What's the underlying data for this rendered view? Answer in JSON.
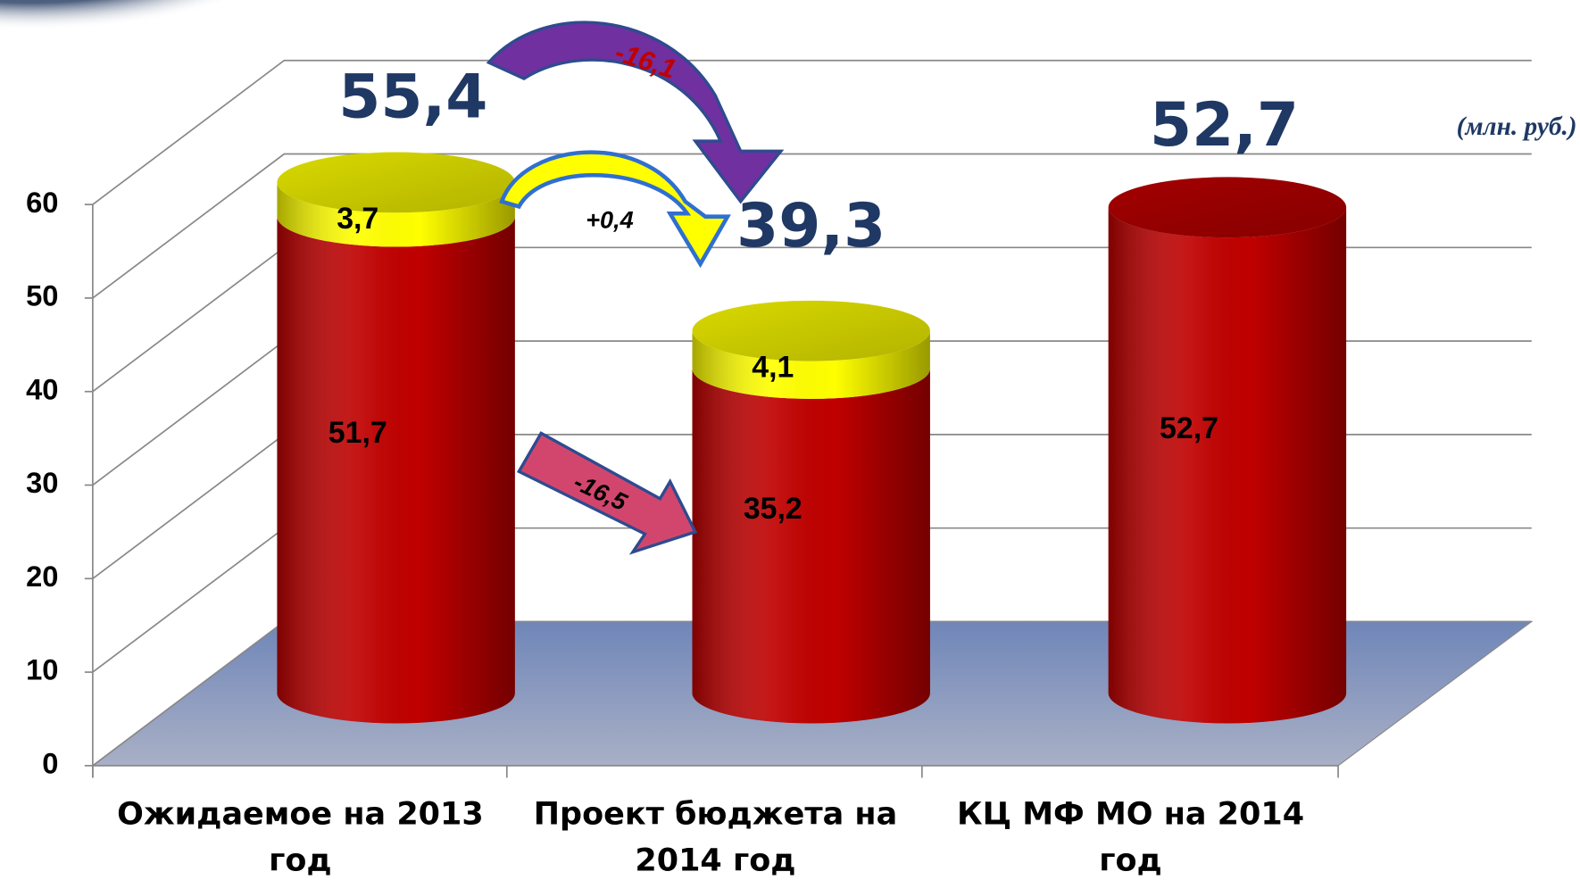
{
  "chart_data": {
    "type": "cylinder-stacked",
    "categories": [
      "Ожидаемое на 2013 год",
      "Проект бюджета на 2014 год",
      "КЦ МФ МО на 2014 год"
    ],
    "series": [
      {
        "color": "#c00000",
        "values": [
          51.7,
          35.2,
          52.7
        ],
        "value_labels": [
          "51,7",
          "35,2",
          "52,7"
        ]
      },
      {
        "color": "#ffff00",
        "values": [
          3.7,
          4.1,
          null
        ],
        "value_labels": [
          "3,7",
          "4,1",
          null
        ]
      }
    ],
    "totals": {
      "values": [
        55.4,
        39.3,
        52.7
      ],
      "value_labels": [
        "55,4",
        "39,3",
        "52,7"
      ]
    },
    "annotations": [
      {
        "value": -16.1,
        "label": "-16,1"
      },
      {
        "value": 0.4,
        "label": "+0,4"
      },
      {
        "value": -16.5,
        "label": "-16,5"
      }
    ],
    "unit": "(млн. руб.)",
    "ylim": [
      0,
      60
    ],
    "yticks": [
      0,
      10,
      20,
      30,
      40,
      50,
      60
    ],
    "grid": true
  }
}
